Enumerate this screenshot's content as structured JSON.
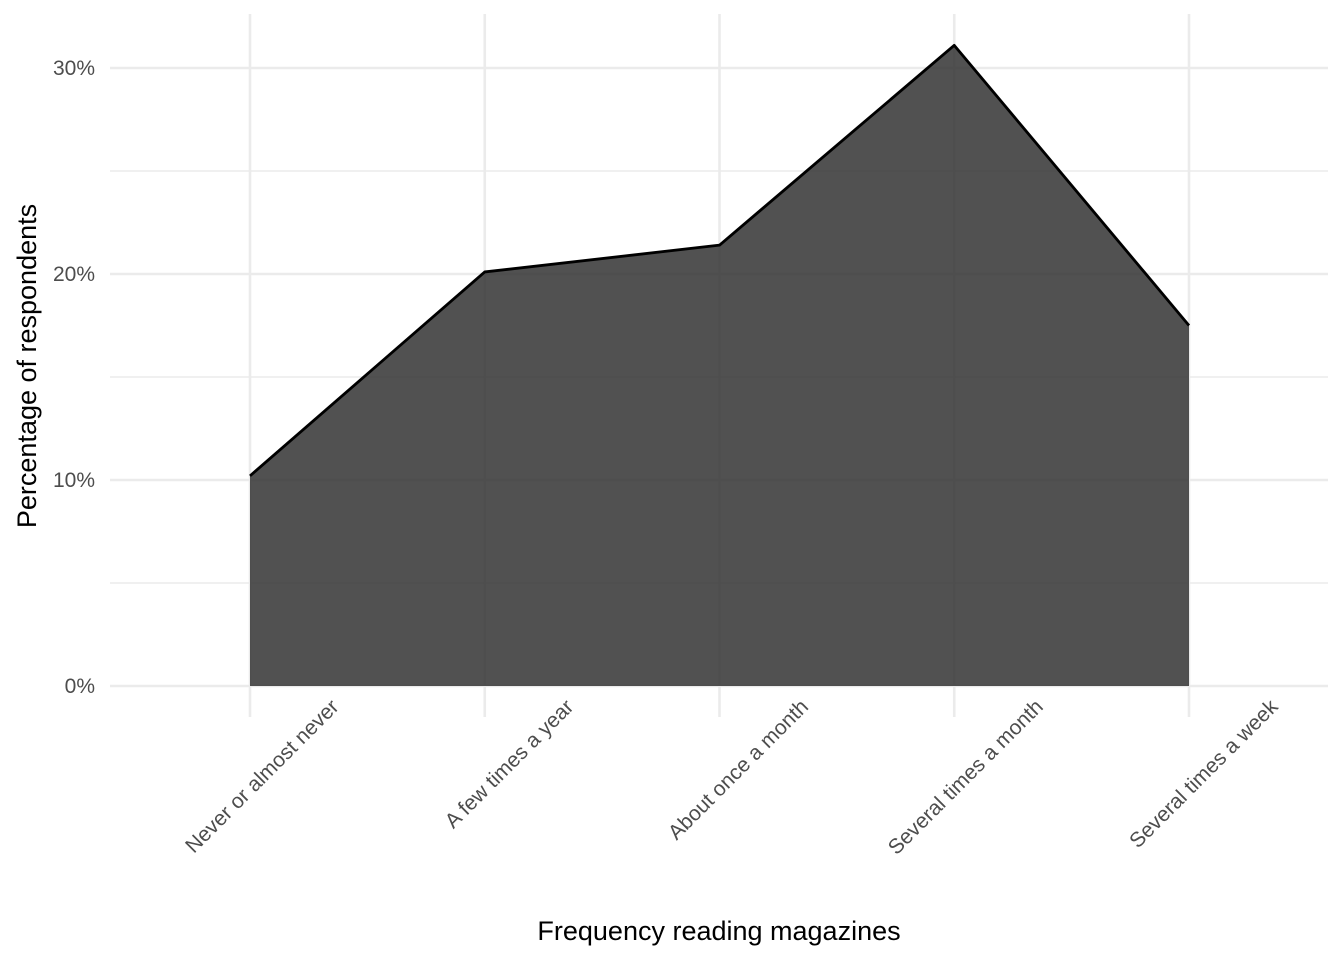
{
  "chart_data": {
    "type": "area",
    "title": "",
    "xlabel": "Frequency reading magazines",
    "ylabel": "Percentage of respondents",
    "categories": [
      "Never or almost never",
      "A few times a year",
      "About once a month",
      "Several times a month",
      "Several times a week"
    ],
    "values": [
      10.2,
      20.1,
      21.4,
      31.1,
      17.5
    ],
    "ylim": [
      0,
      33
    ],
    "yticks": [
      0,
      10,
      20,
      30
    ],
    "ytick_labels": [
      "0%",
      "10%",
      "20%",
      "30%"
    ],
    "grid": true,
    "legend": "none",
    "fill_color": "#333333",
    "fill_opacity": 0.85,
    "line_color": "#000000",
    "grid_color": "#ebebeb"
  }
}
